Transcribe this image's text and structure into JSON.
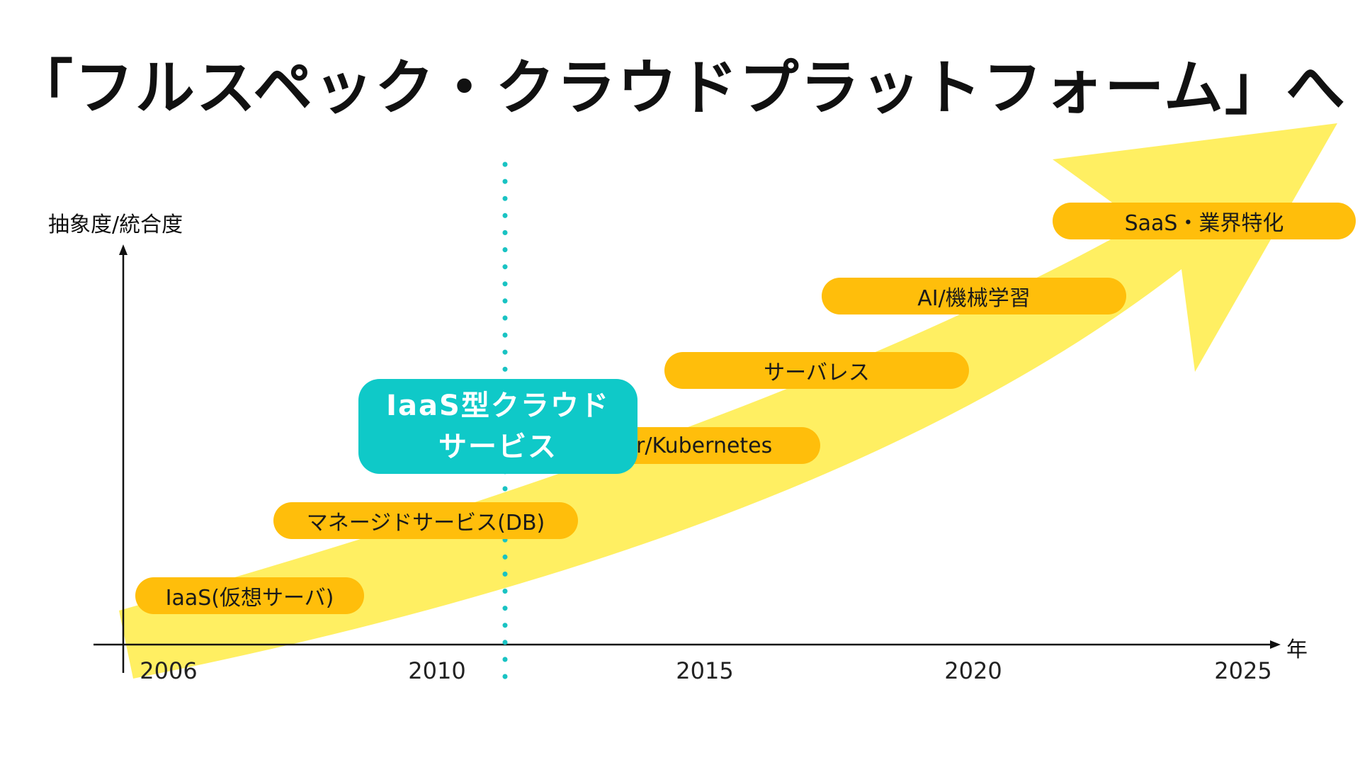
{
  "title": "「フルスペック・クラウドプラットフォーム」へ",
  "axes": {
    "y_label": "抽象度/統合度",
    "x_label": "年",
    "x_ticks": [
      "2006",
      "2010",
      "2015",
      "2020",
      "2025"
    ]
  },
  "stages": [
    {
      "label": "IaaS(仮想サーバ)"
    },
    {
      "label": "マネージドサービス(DB)"
    },
    {
      "label": "r/Kubernetes"
    },
    {
      "label": "サーバレス"
    },
    {
      "label": "AI/機械学習"
    },
    {
      "label": "SaaS・業界特化"
    }
  ],
  "callout": {
    "line1": "IaaS型クラウド",
    "line2": "サービス"
  },
  "colors": {
    "arrow": "#FFEE55",
    "pill": "#FFBE0B",
    "callout": "#0FC9C8",
    "divider": "#19C3C3",
    "axis": "#111111"
  }
}
